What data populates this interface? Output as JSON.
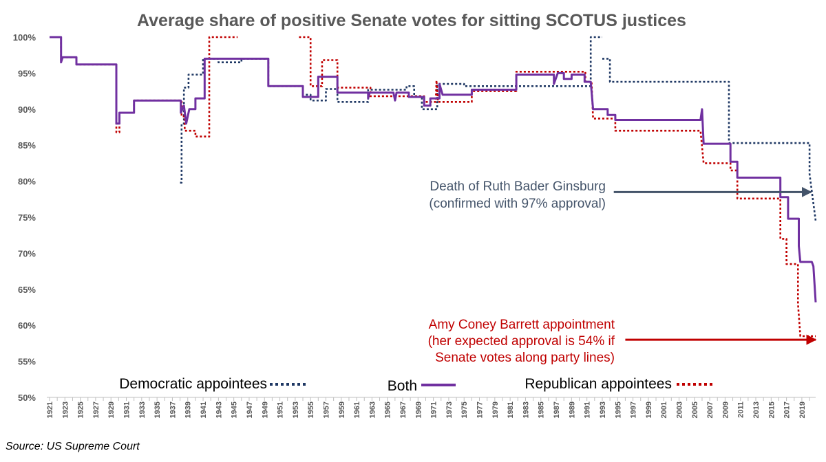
{
  "chart_data": {
    "type": "line",
    "title": "Average share of positive Senate votes for sitting SCOTUS justices",
    "source": "Source: US Supreme Court",
    "ylim": [
      50,
      100
    ],
    "xlim": [
      1921,
      2020.8
    ],
    "y_ticks": [
      "50%",
      "55%",
      "60%",
      "65%",
      "70%",
      "75%",
      "80%",
      "85%",
      "90%",
      "95%",
      "100%"
    ],
    "x_ticks": [
      "1921",
      "1923",
      "1925",
      "1927",
      "1929",
      "1931",
      "1933",
      "1935",
      "1937",
      "1939",
      "1941",
      "1943",
      "1945",
      "1947",
      "1949",
      "1951",
      "1953",
      "1955",
      "1957",
      "1959",
      "1961",
      "1963",
      "1965",
      "1967",
      "1969",
      "1971",
      "1973",
      "1975",
      "1977",
      "1979",
      "1981",
      "1983",
      "1985",
      "1987",
      "1989",
      "1991",
      "1993",
      "1995",
      "1997",
      "1999",
      "2001",
      "2003",
      "2005",
      "2007",
      "2009",
      "2011",
      "2013",
      "2015",
      "2017",
      "2019"
    ],
    "grid": false,
    "legend_position": "bottom",
    "colors": {
      "dem": "#1f3864",
      "both": "#7030a0",
      "rep": "#c00000",
      "annotation_dark": "#44546a"
    },
    "series": [
      {
        "name": "Democratic appointees",
        "style": "dotted",
        "segments": [
          [
            [
              1938.0,
              79.8
            ],
            [
              1938.2,
              79.8
            ],
            [
              1938.2,
              88.0
            ],
            [
              1938.5,
              88.0
            ],
            [
              1938.5,
              93.0
            ],
            [
              1939.1,
              93.0
            ],
            [
              1939.1,
              94.8
            ],
            [
              1941.0,
              94.8
            ],
            [
              1941.0,
              97.0
            ],
            [
              1943.0,
              97.0
            ],
            [
              1943.0,
              96.5
            ],
            [
              1946.0,
              96.5
            ],
            [
              1946.0,
              97.0
            ],
            [
              1949.5,
              97.0
            ],
            [
              1949.5,
              93.2
            ],
            [
              1954.0,
              93.2
            ],
            [
              1954.0,
              92.0
            ],
            [
              1955.0,
              92.0
            ],
            [
              1955.0,
              91.2
            ],
            [
              1957.0,
              91.2
            ],
            [
              1957.0,
              92.8
            ],
            [
              1958.5,
              92.8
            ],
            [
              1958.5,
              91.0
            ],
            [
              1962.5,
              91.0
            ],
            [
              1962.5,
              92.7
            ],
            [
              1967.5,
              92.7
            ],
            [
              1967.5,
              93.2
            ],
            [
              1968.5,
              93.2
            ],
            [
              1968.5,
              91.8
            ],
            [
              1969.5,
              91.8
            ],
            [
              1969.5,
              90.0
            ],
            [
              1971.5,
              90.0
            ],
            [
              1971.5,
              93.5
            ],
            [
              1975.0,
              93.5
            ],
            [
              1975.0,
              93.2
            ],
            [
              1991.5,
              93.2
            ],
            [
              1991.5,
              100.0
            ],
            [
              1993.0,
              100.0
            ]
          ],
          [
            [
              1993.0,
              97.0
            ],
            [
              1994.0,
              97.0
            ],
            [
              1994.0,
              93.8
            ],
            [
              2009.5,
              93.8
            ],
            [
              2009.5,
              85.3
            ],
            [
              2020.0,
              85.3
            ],
            [
              2020.0,
              81.0
            ],
            [
              2020.8,
              74.5
            ]
          ]
        ]
      },
      {
        "name": "Both",
        "style": "solid",
        "points": [
          [
            1921.0,
            100.0
          ],
          [
            1922.5,
            100.0
          ],
          [
            1922.5,
            96.5
          ],
          [
            1922.7,
            97.2
          ],
          [
            1924.5,
            97.2
          ],
          [
            1924.5,
            96.2
          ],
          [
            1929.7,
            96.2
          ],
          [
            1929.7,
            88.0
          ],
          [
            1930.1,
            88.0
          ],
          [
            1930.1,
            89.5
          ],
          [
            1932.0,
            89.5
          ],
          [
            1932.0,
            91.2
          ],
          [
            1938.1,
            91.2
          ],
          [
            1938.1,
            89.5
          ],
          [
            1938.5,
            90.5
          ],
          [
            1938.8,
            88.0
          ],
          [
            1939.2,
            90.0
          ],
          [
            1940.0,
            90.0
          ],
          [
            1940.0,
            91.5
          ],
          [
            1941.2,
            91.5
          ],
          [
            1941.2,
            97.0
          ],
          [
            1949.5,
            97.0
          ],
          [
            1949.5,
            93.2
          ],
          [
            1954.0,
            93.2
          ],
          [
            1954.0,
            91.7
          ],
          [
            1956.0,
            91.7
          ],
          [
            1956.0,
            94.5
          ],
          [
            1958.5,
            94.5
          ],
          [
            1958.5,
            92.3
          ],
          [
            1962.5,
            92.3
          ],
          [
            1962.5,
            91.5
          ],
          [
            1962.7,
            92.3
          ],
          [
            1965.8,
            92.3
          ],
          [
            1966.0,
            91.2
          ],
          [
            1966.2,
            92.3
          ],
          [
            1967.8,
            92.3
          ],
          [
            1967.8,
            91.7
          ],
          [
            1969.8,
            91.7
          ],
          [
            1969.8,
            90.5
          ],
          [
            1970.6,
            90.5
          ],
          [
            1970.6,
            91.5
          ],
          [
            1971.8,
            91.5
          ],
          [
            1971.8,
            93.5
          ],
          [
            1972.2,
            92.0
          ],
          [
            1976.0,
            92.0
          ],
          [
            1976.0,
            92.7
          ],
          [
            1981.8,
            92.7
          ],
          [
            1981.8,
            94.8
          ],
          [
            1986.7,
            94.8
          ],
          [
            1986.7,
            93.5
          ],
          [
            1987.2,
            95.0
          ],
          [
            1988.0,
            95.0
          ],
          [
            1988.0,
            94.2
          ],
          [
            1989.0,
            94.2
          ],
          [
            1989.0,
            94.8
          ],
          [
            1990.7,
            94.8
          ],
          [
            1990.7,
            93.8
          ],
          [
            1991.5,
            93.8
          ],
          [
            1991.8,
            90.0
          ],
          [
            1993.7,
            90.0
          ],
          [
            1993.7,
            89.2
          ],
          [
            1994.7,
            89.2
          ],
          [
            1994.7,
            88.5
          ],
          [
            2005.8,
            88.5
          ],
          [
            2006.0,
            90.0
          ],
          [
            2006.2,
            85.2
          ],
          [
            2009.7,
            85.2
          ],
          [
            2009.7,
            82.7
          ],
          [
            2010.6,
            82.7
          ],
          [
            2010.6,
            80.5
          ],
          [
            2016.2,
            80.5
          ],
          [
            2016.2,
            77.8
          ],
          [
            2017.2,
            77.8
          ],
          [
            2017.2,
            74.8
          ],
          [
            2018.6,
            74.8
          ],
          [
            2018.6,
            71.0
          ],
          [
            2018.8,
            68.8
          ],
          [
            2020.3,
            68.8
          ],
          [
            2020.5,
            68.2
          ],
          [
            2020.8,
            63.2
          ]
        ]
      },
      {
        "name": "Republican appointees",
        "style": "dotted",
        "segments": [
          [
            [
              1921.0,
              100.0
            ],
            [
              1922.5,
              100.0
            ],
            [
              1922.5,
              96.5
            ],
            [
              1922.7,
              97.2
            ],
            [
              1924.5,
              97.2
            ],
            [
              1924.5,
              96.2
            ],
            [
              1929.7,
              96.2
            ],
            [
              1929.7,
              86.8
            ],
            [
              1930.1,
              86.8
            ],
            [
              1930.1,
              89.5
            ],
            [
              1932.0,
              89.5
            ],
            [
              1932.0,
              91.2
            ],
            [
              1938.2,
              91.2
            ],
            [
              1938.2,
              89.0
            ],
            [
              1938.6,
              89.0
            ],
            [
              1938.6,
              87.0
            ],
            [
              1940.0,
              87.0
            ],
            [
              1940.0,
              86.2
            ],
            [
              1941.8,
              86.2
            ],
            [
              1941.8,
              100.0
            ],
            [
              1945.5,
              100.0
            ]
          ],
          [
            [
              1953.5,
              100.0
            ],
            [
              1955.0,
              100.0
            ],
            [
              1955.0,
              93.2
            ],
            [
              1956.5,
              93.2
            ],
            [
              1956.5,
              96.8
            ],
            [
              1958.5,
              96.8
            ],
            [
              1958.5,
              93.0
            ],
            [
              1962.8,
              93.0
            ],
            [
              1962.8,
              91.8
            ],
            [
              1969.8,
              91.8
            ],
            [
              1969.8,
              91.0
            ],
            [
              1971.3,
              91.0
            ],
            [
              1971.4,
              94.0
            ],
            [
              1971.6,
              91.0
            ],
            [
              1976.0,
              91.0
            ],
            [
              1976.0,
              92.5
            ],
            [
              1981.8,
              92.5
            ],
            [
              1981.8,
              95.2
            ],
            [
              1990.8,
              95.2
            ],
            [
              1990.8,
              93.8
            ],
            [
              1991.6,
              93.8
            ],
            [
              1991.8,
              88.7
            ],
            [
              1994.7,
              88.7
            ],
            [
              1994.7,
              87.0
            ],
            [
              2005.8,
              87.0
            ],
            [
              2006.2,
              82.5
            ],
            [
              2009.7,
              82.5
            ],
            [
              2009.7,
              81.5
            ],
            [
              2010.6,
              81.5
            ],
            [
              2010.6,
              77.6
            ],
            [
              2016.2,
              77.6
            ],
            [
              2016.2,
              72.0
            ],
            [
              2017.0,
              72.0
            ],
            [
              2017.0,
              68.5
            ],
            [
              2018.5,
              68.5
            ],
            [
              2018.5,
              63.0
            ],
            [
              2018.8,
              58.5
            ],
            [
              2020.8,
              58.5
            ]
          ]
        ]
      }
    ],
    "annotations": [
      {
        "id": "rbg",
        "lines": [
          "Death of Ruth Bader Ginsburg",
          "(confirmed with 97% approval)"
        ],
        "color": "#44546a",
        "arrow_from_x": 1994.5,
        "arrow_to_x": 2020.2,
        "arrow_y": 78.5
      },
      {
        "id": "acb",
        "lines": [
          "Amy Coney Barrett appointment",
          "(her expected approval is 54% if",
          "Senate votes along party lines)"
        ],
        "color": "#c00000",
        "arrow_from_x": 1996.0,
        "arrow_to_x": 2020.8,
        "arrow_y": 58.0
      }
    ]
  }
}
